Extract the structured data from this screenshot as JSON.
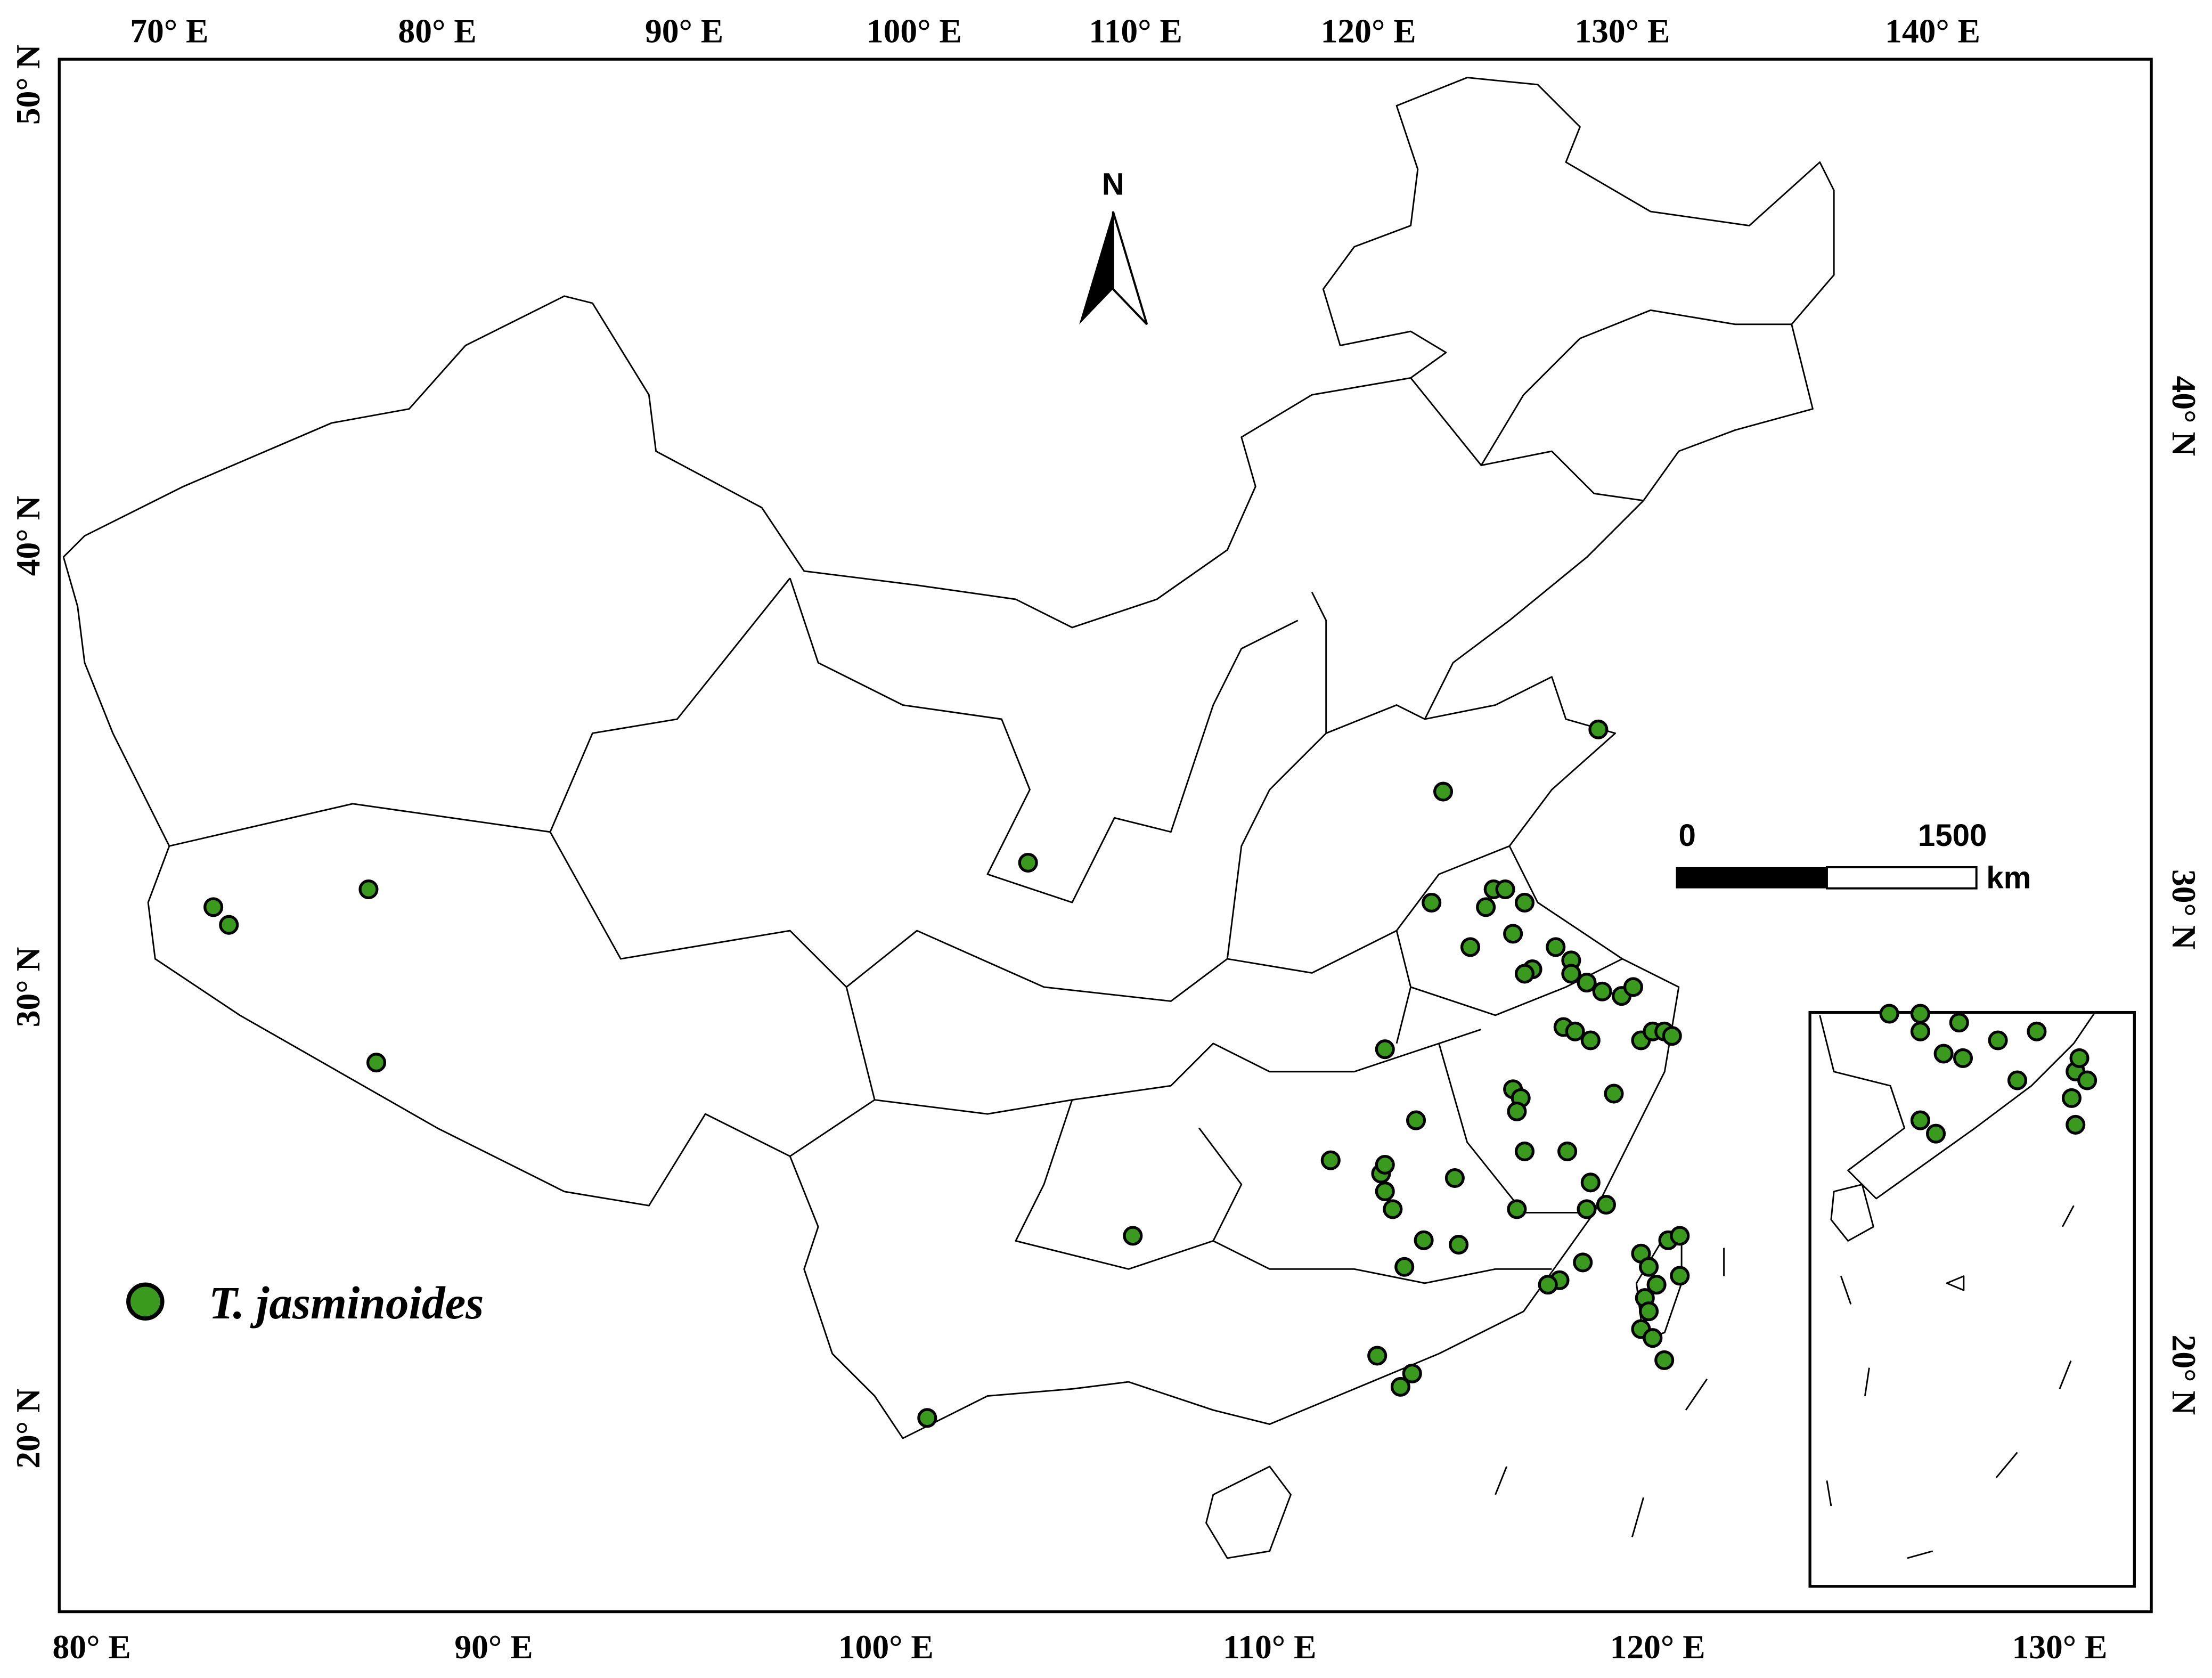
{
  "map": {
    "top_labels": [
      "70° E",
      "80° E",
      "90° E",
      "100° E",
      "110° E",
      "120° E",
      "130° E",
      "140° E"
    ],
    "bottom_labels": [
      "80° E",
      "90° E",
      "100° E",
      "110° E",
      "120° E",
      "130° E"
    ],
    "left_labels": [
      "50° N",
      "40° N",
      "30° N",
      "20° N"
    ],
    "right_labels": [
      "40° N",
      "30° N",
      "20° N"
    ],
    "north": "N",
    "scale": {
      "start": "0",
      "end": "1500",
      "unit": "km"
    },
    "legend": {
      "label": "T. jasminoides",
      "color": "#3a9a1e"
    },
    "points": [
      [
        82.7,
        31.8
      ],
      [
        83.1,
        31.4
      ],
      [
        86.7,
        32.2
      ],
      [
        86.9,
        28.3
      ],
      [
        103.7,
        32.8
      ],
      [
        114.4,
        34.4
      ],
      [
        118.4,
        35.8
      ],
      [
        106.4,
        24.4
      ],
      [
        101.1,
        20.3
      ],
      [
        111.5,
        26.1
      ],
      [
        112.9,
        28.6
      ],
      [
        114.1,
        31.9
      ],
      [
        115.5,
        31.8
      ],
      [
        115.7,
        32.2
      ],
      [
        116.0,
        32.2
      ],
      [
        116.5,
        31.9
      ],
      [
        116.2,
        31.2
      ],
      [
        115.1,
        30.9
      ],
      [
        116.7,
        30.4
      ],
      [
        116.5,
        30.3
      ],
      [
        117.3,
        30.9
      ],
      [
        117.7,
        30.6
      ],
      [
        117.7,
        30.3
      ],
      [
        118.1,
        30.1
      ],
      [
        118.5,
        29.9
      ],
      [
        119.0,
        29.8
      ],
      [
        119.3,
        30.0
      ],
      [
        117.5,
        29.1
      ],
      [
        117.8,
        29.0
      ],
      [
        118.2,
        28.8
      ],
      [
        119.5,
        28.8
      ],
      [
        119.8,
        29.0
      ],
      [
        120.1,
        29.0
      ],
      [
        120.3,
        28.9
      ],
      [
        118.8,
        27.6
      ],
      [
        116.2,
        27.7
      ],
      [
        116.4,
        27.5
      ],
      [
        116.3,
        27.2
      ],
      [
        113.7,
        27.0
      ],
      [
        114.7,
        25.7
      ],
      [
        116.5,
        26.3
      ],
      [
        117.6,
        26.3
      ],
      [
        118.2,
        25.6
      ],
      [
        118.1,
        25.0
      ],
      [
        118.6,
        25.1
      ],
      [
        116.3,
        25.0
      ],
      [
        112.8,
        25.8
      ],
      [
        112.9,
        26.0
      ],
      [
        112.9,
        25.4
      ],
      [
        113.1,
        25.0
      ],
      [
        113.9,
        24.3
      ],
      [
        114.8,
        24.2
      ],
      [
        113.4,
        23.7
      ],
      [
        117.4,
        23.4
      ],
      [
        117.1,
        23.3
      ],
      [
        118.0,
        23.8
      ],
      [
        112.7,
        21.7
      ],
      [
        113.3,
        21.0
      ],
      [
        113.6,
        21.3
      ],
      [
        119.5,
        24.0
      ],
      [
        119.7,
        23.7
      ],
      [
        119.6,
        23.0
      ],
      [
        119.7,
        22.7
      ],
      [
        119.5,
        22.3
      ],
      [
        119.8,
        22.1
      ],
      [
        120.1,
        21.6
      ],
      [
        120.2,
        24.3
      ],
      [
        120.5,
        24.4
      ],
      [
        120.5,
        23.5
      ],
      [
        119.9,
        23.3
      ],
      [
        125.9,
        29.4
      ],
      [
        126.7,
        29.4
      ],
      [
        127.7,
        29.2
      ],
      [
        128.7,
        28.8
      ],
      [
        129.7,
        29.0
      ],
      [
        126.7,
        29.0
      ],
      [
        127.3,
        28.5
      ],
      [
        127.8,
        28.4
      ],
      [
        129.2,
        27.9
      ],
      [
        126.7,
        27.0
      ],
      [
        127.1,
        26.7
      ],
      [
        130.7,
        28.1
      ],
      [
        130.8,
        28.4
      ],
      [
        131.0,
        27.9
      ],
      [
        130.6,
        27.5
      ],
      [
        130.7,
        26.9
      ]
    ]
  }
}
